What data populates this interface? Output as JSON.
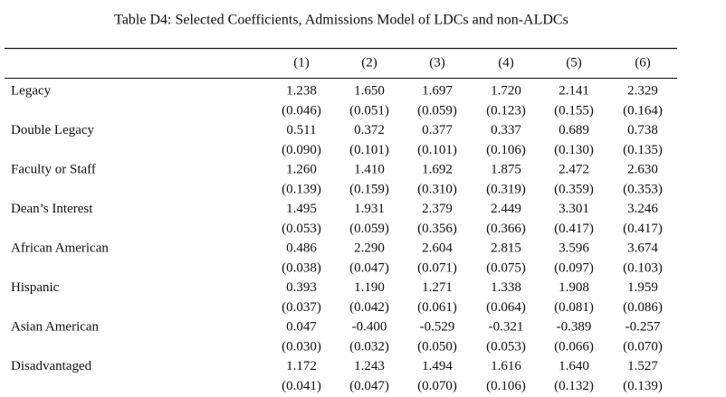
{
  "header": {
    "title": "Table D4: Selected Coefficients, Admissions Model of LDCs and non-ALDCs"
  },
  "table": {
    "columns": [
      "(1)",
      "(2)",
      "(3)",
      "(4)",
      "(5)",
      "(6)"
    ],
    "rows": [
      {
        "label": "Legacy",
        "coefficients": [
          "1.238",
          "1.650",
          "1.697",
          "1.720",
          "2.141",
          "2.329"
        ],
        "standard_errors": [
          "(0.046)",
          "(0.051)",
          "(0.059)",
          "(0.123)",
          "(0.155)",
          "(0.164)"
        ]
      },
      {
        "label": "Double Legacy",
        "coefficients": [
          "0.511",
          "0.372",
          "0.377",
          "0.337",
          "0.689",
          "0.738"
        ],
        "standard_errors": [
          "(0.090)",
          "(0.101)",
          "(0.101)",
          "(0.106)",
          "(0.130)",
          "(0.135)"
        ]
      },
      {
        "label": "Faculty or Staff",
        "coefficients": [
          "1.260",
          "1.410",
          "1.692",
          "1.875",
          "2.472",
          "2.630"
        ],
        "standard_errors": [
          "(0.139)",
          "(0.159)",
          "(0.310)",
          "(0.319)",
          "(0.359)",
          "(0.353)"
        ]
      },
      {
        "label": "Dean’s Interest",
        "coefficients": [
          "1.495",
          "1.931",
          "2.379",
          "2.449",
          "3.301",
          "3.246"
        ],
        "standard_errors": [
          "(0.053)",
          "(0.059)",
          "(0.356)",
          "(0.366)",
          "(0.417)",
          "(0.417)"
        ]
      },
      {
        "label": "African American",
        "coefficients": [
          "0.486",
          "2.290",
          "2.604",
          "2.815",
          "3.596",
          "3.674"
        ],
        "standard_errors": [
          "(0.038)",
          "(0.047)",
          "(0.071)",
          "(0.075)",
          "(0.097)",
          "(0.103)"
        ]
      },
      {
        "label": "Hispanic",
        "coefficients": [
          "0.393",
          "1.190",
          "1.271",
          "1.338",
          "1.908",
          "1.959"
        ],
        "standard_errors": [
          "(0.037)",
          "(0.042)",
          "(0.061)",
          "(0.064)",
          "(0.081)",
          "(0.086)"
        ]
      },
      {
        "label": "Asian American",
        "coefficients": [
          "0.047",
          "-0.400",
          "-0.529",
          "-0.321",
          "-0.389",
          "-0.257"
        ],
        "standard_errors": [
          "(0.030)",
          "(0.032)",
          "(0.050)",
          "(0.053)",
          "(0.066)",
          "(0.070)"
        ]
      },
      {
        "label": "Disadvantaged",
        "coefficients": [
          "1.172",
          "1.243",
          "1.494",
          "1.616",
          "1.640",
          "1.527"
        ],
        "standard_errors": [
          "(0.041)",
          "(0.047)",
          "(0.070)",
          "(0.106)",
          "(0.132)",
          "(0.139)"
        ]
      }
    ]
  }
}
